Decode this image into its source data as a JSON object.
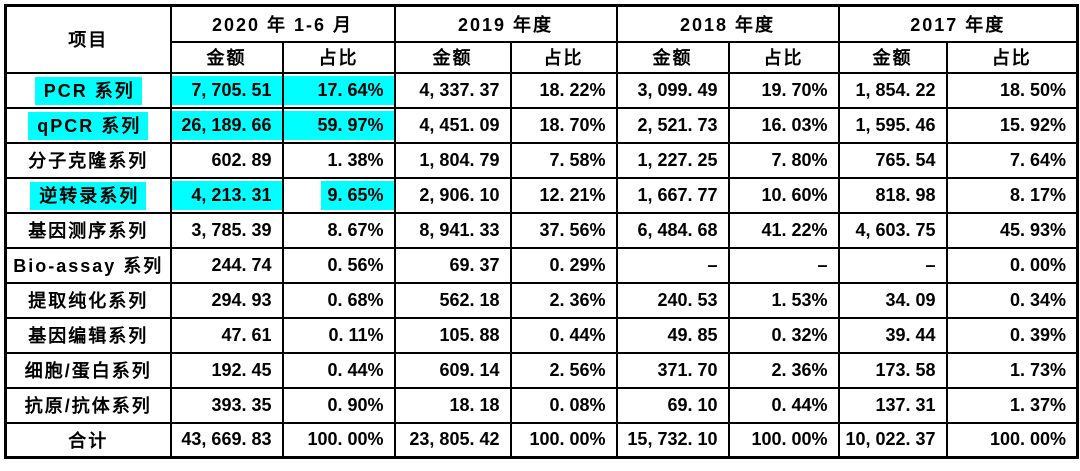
{
  "table": {
    "highlight_color": "#00ffff",
    "header": {
      "item_label": "项目",
      "groups": [
        {
          "label": "2020 年 1-6 月"
        },
        {
          "label": "2019 年度"
        },
        {
          "label": "2018 年度"
        },
        {
          "label": "2017 年度"
        }
      ],
      "sub_amount": "金额",
      "sub_ratio": "占比"
    },
    "rows": [
      {
        "label": "PCR 系列",
        "hl": {
          "label": true,
          "amount": "full",
          "ratio": "full"
        },
        "values": [
          "7, 705. 51",
          "17. 64%",
          "4, 337. 37",
          "18. 22%",
          "3, 099. 49",
          "19. 70%",
          "1, 854. 22",
          "18. 50%"
        ]
      },
      {
        "label": "qPCR 系列",
        "hl": {
          "label": true,
          "amount": "full",
          "ratio": "full"
        },
        "values": [
          "26, 189. 66",
          "59. 97%",
          "4, 451. 09",
          "18. 70%",
          "2, 521. 73",
          "16. 03%",
          "1, 595. 46",
          "15. 92%"
        ]
      },
      {
        "label": "分子克隆系列",
        "hl": null,
        "values": [
          "602. 89",
          "1. 38%",
          "1, 804. 79",
          "7. 58%",
          "1, 227. 25",
          "7. 80%",
          "765. 54",
          "7. 64%"
        ]
      },
      {
        "label": "逆转录系列",
        "hl": {
          "label": true,
          "amount": "full",
          "ratio": "tight"
        },
        "values": [
          "4, 213. 31",
          "9. 65%",
          "2, 906. 10",
          "12. 21%",
          "1, 667. 77",
          "10. 60%",
          "818. 98",
          "8. 17%"
        ]
      },
      {
        "label": "基因测序系列",
        "hl": null,
        "values": [
          "3, 785. 39",
          "8. 67%",
          "8, 941. 33",
          "37. 56%",
          "6, 484. 68",
          "41. 22%",
          "4, 603. 75",
          "45. 93%"
        ]
      },
      {
        "label": "Bio-assay 系列",
        "hl": null,
        "values": [
          "244. 74",
          "0. 56%",
          "69. 37",
          "0. 29%",
          "–",
          "–",
          "–",
          "0. 00%"
        ]
      },
      {
        "label": "提取纯化系列",
        "hl": null,
        "values": [
          "294. 93",
          "0. 68%",
          "562. 18",
          "2. 36%",
          "240. 53",
          "1. 53%",
          "34. 09",
          "0. 34%"
        ]
      },
      {
        "label": "基因编辑系列",
        "hl": null,
        "values": [
          "47. 61",
          "0. 11%",
          "105. 88",
          "0. 44%",
          "49. 85",
          "0. 32%",
          "39. 44",
          "0. 39%"
        ]
      },
      {
        "label": "细胞/蛋白系列",
        "hl": null,
        "values": [
          "192. 45",
          "0. 44%",
          "609. 14",
          "2. 56%",
          "371. 70",
          "2. 36%",
          "173. 58",
          "1. 73%"
        ]
      },
      {
        "label": "抗原/抗体系列",
        "hl": null,
        "values": [
          "393. 35",
          "0. 90%",
          "18. 18",
          "0. 08%",
          "69. 10",
          "0. 44%",
          "137. 31",
          "1. 37%"
        ]
      },
      {
        "label": "合计",
        "hl": null,
        "is_total": true,
        "values": [
          "43, 669. 83",
          "100. 00%",
          "23, 805. 42",
          "100. 00%",
          "15, 732. 10",
          "100. 00%",
          "10, 022. 37",
          "100. 00%"
        ]
      }
    ]
  }
}
